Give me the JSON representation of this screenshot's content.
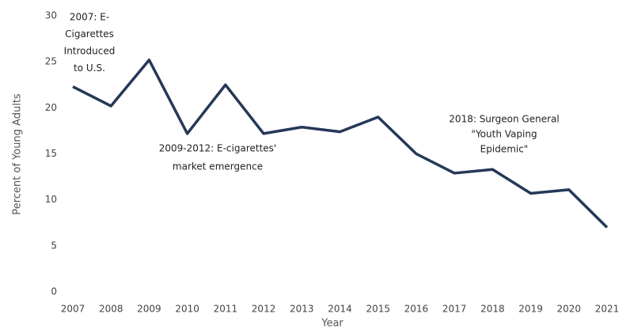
{
  "chart_data": {
    "type": "line",
    "x_label": "Year",
    "y_label": "Percent of Young Adults",
    "categories": [
      "2007",
      "2008",
      "2009",
      "2010",
      "2011",
      "2012",
      "2013",
      "2014",
      "2015",
      "2016",
      "2017",
      "2018",
      "2019",
      "2020",
      "2021"
    ],
    "series": [
      {
        "name": "Young adults",
        "color": "#253858",
        "values": [
          22.3,
          20.2,
          25.2,
          17.2,
          22.5,
          17.2,
          17.9,
          17.4,
          19.0,
          15.0,
          12.9,
          13.3,
          10.7,
          11.1,
          7.0
        ]
      }
    ],
    "ylim": [
      0,
      30
    ],
    "yticks": [
      0,
      5,
      10,
      15,
      20,
      25,
      30
    ],
    "grid": false,
    "annotations": [
      {
        "lines": [
          "2007: E-",
          "Cigarettes",
          "Introduced",
          "to U.S."
        ]
      },
      {
        "lines": [
          "2009-2012: E-cigarettes'",
          "market emergence"
        ]
      },
      {
        "lines": [
          "2018: Surgeon General",
          "\"Youth Vaping",
          "Epidemic\""
        ]
      }
    ]
  }
}
